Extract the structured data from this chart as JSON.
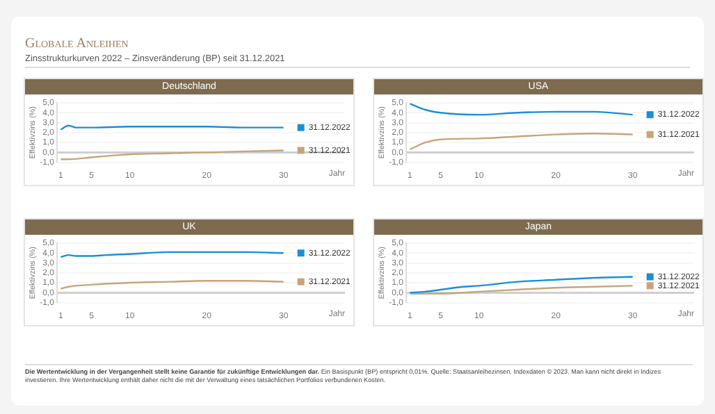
{
  "chart_data": [
    {
      "type": "other",
      "title": "Globale Anleihen",
      "subtitle": "Zinsstrukturkurven 2022 – Zinsveränderung (BP) seit 31.12.2021",
      "annotations": [
        "Die Wertentwicklung in der Vergangenheit stellt keine Garantie für zukünftige Entwicklungen dar.",
        "Ein Basispunkt (BP) entspricht 0,01%. Quelle: Staatsanleihezinsen. Indexdaten © 2023. Man kann nicht direkt in Indizes investieren. Ihre Wertentwicklung enthält daher nicht die mit der Verwaltung eines tatsächlichen Portfolios verbundenen Kosten."
      ]
    },
    {
      "type": "line",
      "title": "Deutschland",
      "xlabel": "Jahr",
      "ylabel": "Effektivzins (%)",
      "xlim": [
        0.5,
        38
      ],
      "xticks": [
        1,
        5,
        10,
        20,
        30
      ],
      "ylim": [
        -1,
        5
      ],
      "yticks": [
        {
          "value": -1,
          "label": "-1,0"
        },
        {
          "value": 0,
          "label": "0,0"
        },
        {
          "value": 1,
          "label": "1,0"
        },
        {
          "value": 2,
          "label": "2,0"
        },
        {
          "value": 3,
          "label": "3,0"
        },
        {
          "value": 4,
          "label": "4,0"
        },
        {
          "value": 5,
          "label": "5,0"
        }
      ],
      "grid": "y",
      "marker": "none",
      "legend": "right",
      "series": [
        {
          "name": "31.12.2022",
          "color": "#1a8fd6",
          "x": [
            1,
            2,
            3,
            5,
            10,
            15,
            20,
            25,
            30
          ],
          "values": [
            2.3,
            2.7,
            2.5,
            2.5,
            2.6,
            2.6,
            2.6,
            2.5,
            2.5
          ]
        },
        {
          "name": "31.12.2021",
          "color": "#c8a47a",
          "x": [
            1,
            2,
            5,
            8,
            10,
            15,
            20,
            25,
            30
          ],
          "values": [
            -0.7,
            -0.7,
            -0.5,
            -0.3,
            -0.2,
            -0.1,
            0,
            0.1,
            0.2
          ]
        }
      ]
    },
    {
      "type": "line",
      "title": "USA",
      "xlabel": "Jahr",
      "ylabel": "Effektivzins (%)",
      "xlim": [
        0.5,
        38
      ],
      "xticks": [
        1,
        5,
        10,
        20,
        30
      ],
      "ylim": [
        -1,
        5
      ],
      "yticks": [
        {
          "value": -1,
          "label": "-1,0"
        },
        {
          "value": 0,
          "label": "0,0"
        },
        {
          "value": 1,
          "label": "1,0"
        },
        {
          "value": 2,
          "label": "2,0"
        },
        {
          "value": 3,
          "label": "3,0"
        },
        {
          "value": 4,
          "label": "4,0"
        },
        {
          "value": 5,
          "label": "5,0"
        }
      ],
      "grid": "y",
      "marker": "none",
      "legend": "right",
      "series": [
        {
          "name": "31.12.2022",
          "color": "#1a8fd6",
          "x": [
            1,
            3,
            5,
            10,
            15,
            20,
            25,
            30
          ],
          "values": [
            4.9,
            4.3,
            4.0,
            3.8,
            4.0,
            4.1,
            4.1,
            3.8
          ]
        },
        {
          "name": "31.12.2021",
          "color": "#c8a47a",
          "x": [
            1,
            3,
            5,
            10,
            15,
            20,
            25,
            30
          ],
          "values": [
            0.3,
            1.0,
            1.3,
            1.4,
            1.6,
            1.8,
            1.9,
            1.8
          ]
        }
      ]
    },
    {
      "type": "line",
      "title": "UK",
      "xlabel": "Jahr",
      "ylabel": "Effektivzins (%)",
      "xlim": [
        0.5,
        38
      ],
      "xticks": [
        1,
        5,
        10,
        20,
        30
      ],
      "ylim": [
        -1,
        5
      ],
      "yticks": [
        {
          "value": -1,
          "label": "-1,0"
        },
        {
          "value": 0,
          "label": "0,0"
        },
        {
          "value": 1,
          "label": "1,0"
        },
        {
          "value": 2,
          "label": "2,0"
        },
        {
          "value": 3,
          "label": "3,0"
        },
        {
          "value": 4,
          "label": "4,0"
        },
        {
          "value": 5,
          "label": "5,0"
        }
      ],
      "grid": "y",
      "marker": "none",
      "legend": "right",
      "series": [
        {
          "name": "31.12.2022",
          "color": "#1a8fd6",
          "x": [
            1,
            2,
            3,
            5,
            7,
            10,
            15,
            20,
            25,
            30
          ],
          "values": [
            3.6,
            3.8,
            3.7,
            3.7,
            3.8,
            3.9,
            4.1,
            4.1,
            4.1,
            4.0
          ]
        },
        {
          "name": "31.12.2021",
          "color": "#c8a47a",
          "x": [
            1,
            2,
            5,
            10,
            15,
            20,
            25,
            30
          ],
          "values": [
            0.4,
            0.6,
            0.8,
            1.0,
            1.1,
            1.2,
            1.2,
            1.1
          ]
        }
      ]
    },
    {
      "type": "line",
      "title": "Japan",
      "xlabel": "Jahr",
      "ylabel": "Effektivzins (%)",
      "xlim": [
        0.5,
        38
      ],
      "xticks": [
        1,
        5,
        10,
        20,
        30
      ],
      "ylim": [
        -1,
        5
      ],
      "yticks": [
        {
          "value": -1,
          "label": "-1,0"
        },
        {
          "value": 0,
          "label": "0,0"
        },
        {
          "value": 1,
          "label": "1,0"
        },
        {
          "value": 2,
          "label": "2,0"
        },
        {
          "value": 3,
          "label": "3,0"
        },
        {
          "value": 4,
          "label": "4,0"
        },
        {
          "value": 5,
          "label": "5,0"
        }
      ],
      "grid": "y",
      "marker": "none",
      "legend": "right",
      "series": [
        {
          "name": "31.12.2022",
          "color": "#1a8fd6",
          "x": [
            1,
            3,
            5,
            8,
            10,
            15,
            20,
            25,
            30
          ],
          "values": [
            0,
            0.1,
            0.3,
            0.6,
            0.7,
            1.1,
            1.3,
            1.5,
            1.6
          ]
        },
        {
          "name": "31.12.2021",
          "color": "#c8a47a",
          "x": [
            1,
            5,
            8,
            10,
            15,
            20,
            25,
            30
          ],
          "values": [
            -0.1,
            -0.1,
            0,
            0.1,
            0.3,
            0.5,
            0.6,
            0.7
          ]
        }
      ]
    }
  ]
}
